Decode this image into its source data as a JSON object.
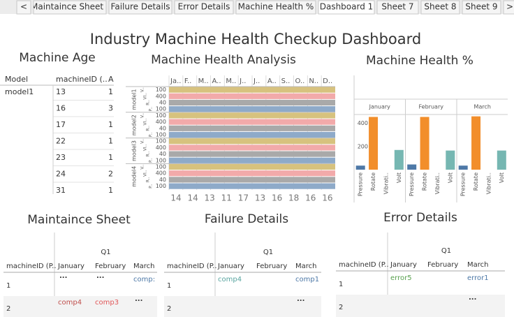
{
  "tabs": [
    "<",
    "Maintaince Sheet",
    "Failure Details",
    "Error Details",
    "Machine Health %",
    "Dashboard 1",
    "Sheet 7",
    "Sheet 8",
    "Sheet 9",
    ">"
  ],
  "active_tab": 5,
  "title": "Industry Machine Health Checkup Dashboard",
  "machine_age": {
    "title": "Machine Age",
    "headers": [
      "Model",
      "machineID (..",
      "A"
    ],
    "model": "model1",
    "ids": [
      13,
      16,
      17,
      22,
      23,
      24,
      31
    ],
    "ages": [
      "1",
      "3",
      "1",
      "1",
      "1",
      "2",
      "1"
    ]
  },
  "health_analysis": {
    "title": "Machine Health Analysis",
    "months": [
      "Ja..",
      "F..",
      "M..",
      "A..",
      "M..",
      "J..",
      "J..",
      "A..",
      "S..",
      "O..",
      "N..",
      "D.."
    ],
    "models": [
      "model1",
      "model2",
      "model3",
      "model4"
    ],
    "measures": [
      "V..",
      "VI..",
      "R..",
      "P.."
    ],
    "measure_colors": [
      "#d7c27e",
      "#f2aaaa",
      "#a9a9a9",
      "#8eaac9"
    ],
    "axis_labels": [
      100,
      400,
      40,
      100
    ],
    "totals": [
      14,
      14,
      13,
      11,
      17,
      13,
      16,
      18,
      16,
      16
    ]
  },
  "health_chart": {
    "type": "bar",
    "title": "Machine Health %",
    "categories": [
      "Pressure",
      "Rotate",
      "Vibrati..",
      "Volt"
    ],
    "colors": [
      "#4e79a7",
      "#f28e2b",
      "#e15759",
      "#76b7b2"
    ],
    "panels": [
      {
        "name": "January",
        "values": [
          35,
          455,
          null,
          170
        ]
      },
      {
        "name": "February",
        "values": [
          45,
          455,
          null,
          165
        ]
      },
      {
        "name": "March",
        "values": [
          35,
          460,
          null,
          165
        ]
      }
    ],
    "ylim": [
      0,
      500
    ],
    "yticks": [
      200,
      400
    ]
  },
  "tables": [
    {
      "title": "Maintaince Sheet",
      "id_header": "machineID (P..",
      "quarter": "Q1",
      "months": [
        "January",
        "February",
        "March"
      ],
      "rows": [
        {
          "id": "1",
          "cells": [
            {
              "text": "..."
            },
            {
              "text": "..."
            },
            {
              "text": "comp:",
              "color": "#4e79a7"
            }
          ]
        },
        {
          "id": "2",
          "cells": [
            {
              "text": "comp4",
              "color": "#c0504d"
            },
            {
              "text": "comp3",
              "color": "#e15759"
            },
            {
              "text": "..."
            }
          ]
        }
      ]
    },
    {
      "title": "Failure Details",
      "id_header": "machineID (P..",
      "quarter": "Q1",
      "months": [
        "January",
        "February",
        "March"
      ],
      "rows": [
        {
          "id": "1",
          "cells": [
            {
              "text": "comp4",
              "color": "#59a5a0"
            },
            null,
            {
              "text": "comp1",
              "color": "#4e79a7"
            }
          ]
        },
        {
          "id": "2",
          "cells": [
            null,
            null,
            {
              "text": "..."
            }
          ]
        }
      ]
    },
    {
      "title": "Error Details",
      "id_header": "machineID (P..",
      "quarter": "Q1",
      "months": [
        "January",
        "February",
        "March"
      ],
      "rows": [
        {
          "id": "1",
          "cells": [
            {
              "text": "error5",
              "color": "#59a14f"
            },
            null,
            {
              "text": "error1",
              "color": "#4e79a7"
            }
          ]
        },
        {
          "id": "2",
          "cells": [
            null,
            null,
            {
              "text": "..."
            }
          ]
        }
      ]
    }
  ]
}
